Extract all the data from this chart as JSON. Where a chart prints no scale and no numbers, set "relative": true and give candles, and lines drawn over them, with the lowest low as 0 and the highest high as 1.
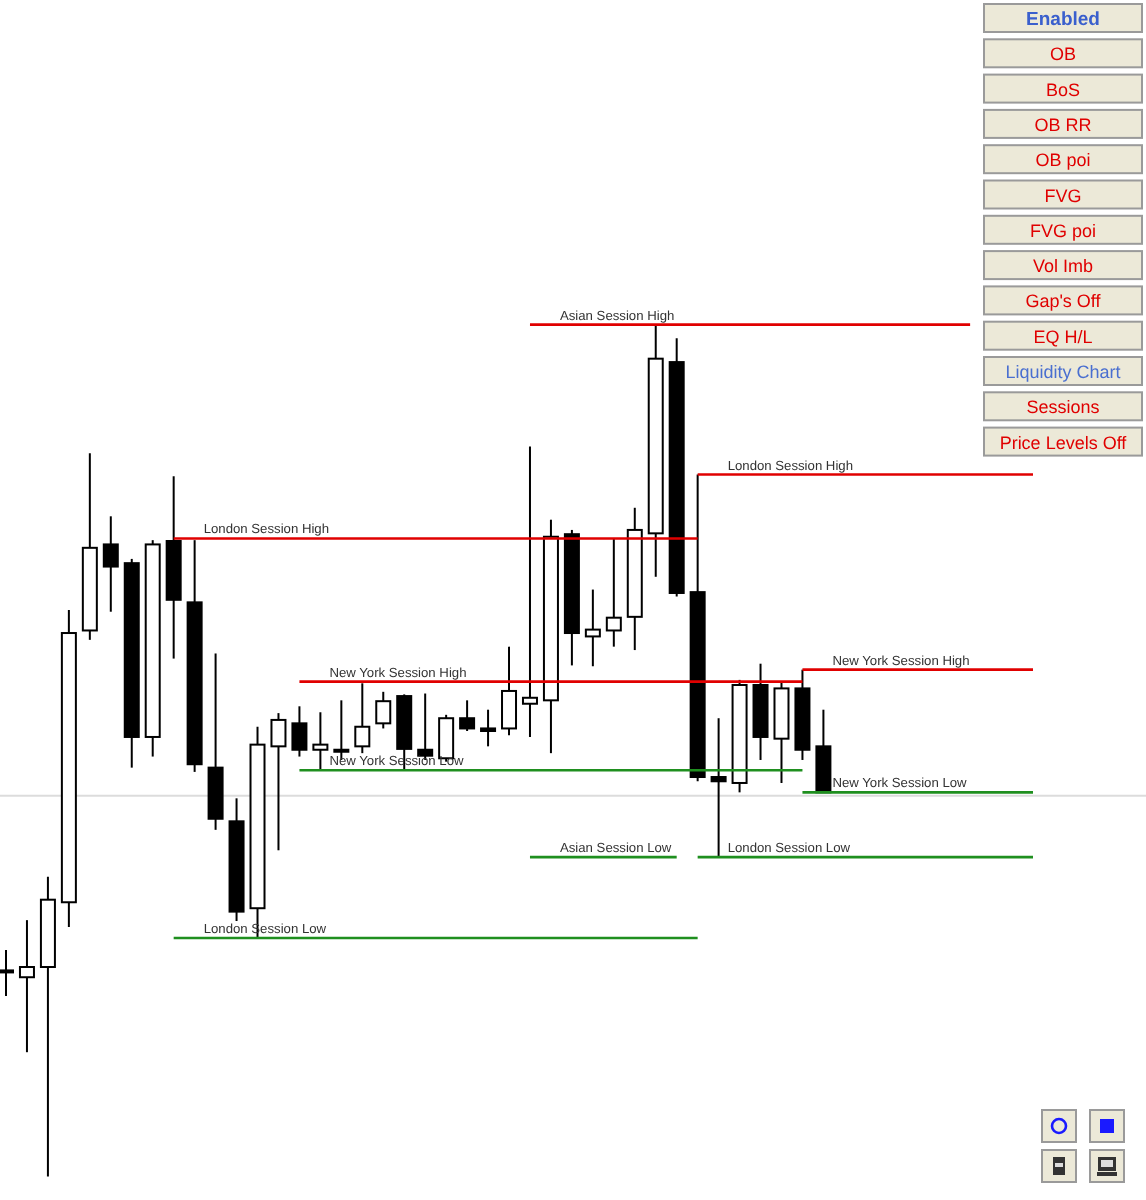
{
  "chart_data": {
    "type": "candlestick",
    "relative": true,
    "tick_labels": false,
    "categories": [
      null,
      null,
      null,
      null,
      null,
      null,
      null,
      null,
      null,
      null,
      null,
      null,
      null,
      null,
      null,
      null,
      null,
      null,
      null,
      null,
      null,
      null,
      null,
      null,
      null,
      null,
      null,
      null,
      null,
      null,
      null,
      null,
      null,
      null,
      null,
      null,
      null,
      null,
      null,
      null,
      null,
      null,
      null,
      null,
      null,
      null,
      null,
      null,
      null,
      null
    ],
    "ohlc": [
      [
        0.24,
        0.266,
        0.212,
        0.242
      ],
      [
        0.234,
        0.301,
        0.146,
        0.246
      ],
      [
        0.246,
        0.352,
        0,
        0.325
      ],
      [
        0.322,
        0.665,
        0.293,
        0.638
      ],
      [
        0.641,
        0.849,
        0.63,
        0.738
      ],
      [
        0.742,
        0.775,
        0.663,
        0.716
      ],
      [
        0.72,
        0.725,
        0.48,
        0.516
      ],
      [
        0.516,
        0.747,
        0.493,
        0.742
      ],
      [
        0.746,
        0.822,
        0.608,
        0.677
      ],
      [
        0.674,
        0.747,
        0.475,
        0.484
      ],
      [
        0.48,
        0.614,
        0.407,
        0.42
      ],
      [
        0.417,
        0.444,
        0.3,
        0.311
      ],
      [
        0.315,
        0.528,
        0.28,
        0.507
      ],
      [
        0.505,
        0.544,
        0.383,
        0.536
      ],
      [
        0.532,
        0.552,
        0.493,
        0.501
      ],
      [
        0.501,
        0.545,
        0.477,
        0.507
      ],
      [
        0.5,
        0.559,
        0.489,
        0.501
      ],
      [
        0.505,
        0.579,
        0.497,
        0.528
      ],
      [
        0.532,
        0.569,
        0.526,
        0.558
      ],
      [
        0.564,
        0.566,
        0.477,
        0.502
      ],
      [
        0.501,
        0.567,
        0.489,
        0.494
      ],
      [
        0.491,
        0.542,
        0.487,
        0.538
      ],
      [
        0.538,
        0.559,
        0.523,
        0.526
      ],
      [
        0.526,
        0.548,
        0.505,
        0.523
      ],
      [
        0.526,
        0.622,
        0.518,
        0.57
      ],
      [
        0.555,
        0.857,
        0.516,
        0.562
      ],
      [
        0.559,
        0.771,
        0.497,
        0.751
      ],
      [
        0.754,
        0.759,
        0.6,
        0.638
      ],
      [
        0.634,
        0.689,
        0.599,
        0.642
      ],
      [
        0.641,
        0.749,
        0.622,
        0.656
      ],
      [
        0.657,
        0.785,
        0.618,
        0.759
      ],
      [
        0.755,
        1,
        0.704,
        0.96
      ],
      [
        0.956,
        0.984,
        0.681,
        0.685
      ],
      [
        0.686,
        0.824,
        0.464,
        0.469
      ],
      [
        0.469,
        0.538,
        0.375,
        0.464
      ],
      [
        0.462,
        0.583,
        0.451,
        0.577
      ],
      [
        0.577,
        0.602,
        0.489,
        0.516
      ],
      [
        0.514,
        0.581,
        0.462,
        0.573
      ],
      [
        0.573,
        0.595,
        0.489,
        0.501
      ],
      [
        0.505,
        0.548,
        0.451,
        0.451
      ],
      null,
      null,
      null,
      null,
      null,
      null,
      null,
      null,
      null,
      null
    ],
    "series": [
      {
        "type": "line",
        "name": "Asian Session High",
        "color": "#e00000",
        "values": [
          null,
          null,
          null,
          null,
          null,
          null,
          null,
          null,
          null,
          null,
          null,
          null,
          null,
          null,
          null,
          null,
          null,
          null,
          null,
          null,
          null,
          null,
          null,
          null,
          null,
          1,
          1,
          1,
          1,
          1,
          1,
          1,
          1,
          1,
          1,
          1,
          1,
          1,
          1,
          1,
          1,
          1,
          1,
          1,
          1,
          1,
          1,
          null,
          null,
          null
        ]
      },
      {
        "type": "line",
        "name": "Asian Session Low",
        "color": "#1f8f1f",
        "values": [
          null,
          null,
          null,
          null,
          null,
          null,
          null,
          null,
          null,
          null,
          null,
          null,
          null,
          null,
          null,
          null,
          null,
          null,
          null,
          null,
          null,
          null,
          null,
          null,
          null,
          0.375,
          0.375,
          0.375,
          0.375,
          0.375,
          0.375,
          0.375,
          0.375,
          null,
          null,
          null,
          null,
          null,
          null,
          null,
          null,
          null,
          null,
          null,
          null,
          null,
          null,
          null,
          null,
          null
        ]
      },
      {
        "type": "line",
        "name": "London Session High",
        "color": "#e00000",
        "values": [
          null,
          null,
          null,
          null,
          null,
          null,
          null,
          null,
          0.749,
          0.749,
          0.749,
          0.749,
          0.749,
          0.749,
          0.749,
          0.749,
          0.749,
          0.749,
          0.749,
          0.749,
          0.749,
          0.749,
          0.749,
          0.749,
          0.749,
          0.749,
          0.749,
          0.749,
          0.749,
          0.749,
          0.749,
          0.749,
          0.749,
          0.749,
          null,
          null,
          null,
          null,
          null,
          null,
          null,
          null,
          null,
          null,
          null,
          null,
          null,
          null,
          null,
          null
        ]
      },
      {
        "type": "line",
        "name": "London Session Low",
        "color": "#1f8f1f",
        "values": [
          null,
          null,
          null,
          null,
          null,
          null,
          null,
          null,
          0.28,
          0.28,
          0.28,
          0.28,
          0.28,
          0.28,
          0.28,
          0.28,
          0.28,
          0.28,
          0.28,
          0.28,
          0.28,
          0.28,
          0.28,
          0.28,
          0.28,
          0.28,
          0.28,
          0.28,
          0.28,
          0.28,
          0.28,
          0.28,
          0.28,
          0.28,
          null,
          null,
          null,
          null,
          null,
          null,
          null,
          null,
          null,
          null,
          null,
          null,
          null,
          null,
          null,
          null
        ]
      },
      {
        "type": "line",
        "name": "London Session High",
        "color": "#e00000",
        "values": [
          null,
          null,
          null,
          null,
          null,
          null,
          null,
          null,
          null,
          null,
          null,
          null,
          null,
          null,
          null,
          null,
          null,
          null,
          null,
          null,
          null,
          null,
          null,
          null,
          null,
          null,
          null,
          null,
          null,
          null,
          null,
          null,
          null,
          0.824,
          0.824,
          0.824,
          0.824,
          0.824,
          0.824,
          0.824,
          0.824,
          0.824,
          0.824,
          0.824,
          0.824,
          0.824,
          0.824,
          0.824,
          0.824,
          0.824
        ]
      },
      {
        "type": "line",
        "name": "London Session Low",
        "color": "#1f8f1f",
        "values": [
          null,
          null,
          null,
          null,
          null,
          null,
          null,
          null,
          null,
          null,
          null,
          null,
          null,
          null,
          null,
          null,
          null,
          null,
          null,
          null,
          null,
          null,
          null,
          null,
          null,
          null,
          null,
          null,
          null,
          null,
          null,
          null,
          null,
          0.375,
          0.375,
          0.375,
          0.375,
          0.375,
          0.375,
          0.375,
          0.375,
          0.375,
          0.375,
          0.375,
          0.375,
          0.375,
          0.375,
          0.375,
          0.375,
          0.375
        ]
      },
      {
        "type": "line",
        "name": "New York Session High",
        "color": "#e00000",
        "values": [
          null,
          null,
          null,
          null,
          null,
          null,
          null,
          null,
          null,
          null,
          null,
          null,
          null,
          null,
          0.581,
          0.581,
          0.581,
          0.581,
          0.581,
          0.581,
          0.581,
          0.581,
          0.581,
          0.581,
          0.581,
          0.581,
          0.581,
          0.581,
          0.581,
          0.581,
          0.581,
          0.581,
          0.581,
          0.581,
          0.581,
          0.581,
          0.581,
          0.581,
          0.581,
          null,
          null,
          null,
          null,
          null,
          null,
          null,
          null,
          null,
          null,
          null
        ]
      },
      {
        "type": "line",
        "name": "New York Session Low",
        "color": "#1f8f1f",
        "values": [
          null,
          null,
          null,
          null,
          null,
          null,
          null,
          null,
          null,
          null,
          null,
          null,
          null,
          null,
          0.477,
          0.477,
          0.477,
          0.477,
          0.477,
          0.477,
          0.477,
          0.477,
          0.477,
          0.477,
          0.477,
          0.477,
          0.477,
          0.477,
          0.477,
          0.477,
          0.477,
          0.477,
          0.477,
          0.477,
          0.477,
          0.477,
          0.477,
          0.477,
          0.477,
          null,
          null,
          null,
          null,
          null,
          null,
          null,
          null,
          null,
          null,
          null
        ]
      },
      {
        "type": "line",
        "name": "New York Session High",
        "color": "#e00000",
        "values": [
          null,
          null,
          null,
          null,
          null,
          null,
          null,
          null,
          null,
          null,
          null,
          null,
          null,
          null,
          null,
          null,
          null,
          null,
          null,
          null,
          null,
          null,
          null,
          null,
          null,
          null,
          null,
          null,
          null,
          null,
          null,
          null,
          null,
          null,
          null,
          null,
          null,
          null,
          0.595,
          0.595,
          0.595,
          0.595,
          0.595,
          0.595,
          0.595,
          0.595,
          0.595,
          0.595,
          0.595,
          0.595
        ]
      },
      {
        "type": "line",
        "name": "New York Session Low",
        "color": "#1f8f1f",
        "values": [
          null,
          null,
          null,
          null,
          null,
          null,
          null,
          null,
          null,
          null,
          null,
          null,
          null,
          null,
          null,
          null,
          null,
          null,
          null,
          null,
          null,
          null,
          null,
          null,
          null,
          null,
          null,
          null,
          null,
          null,
          null,
          null,
          null,
          null,
          null,
          null,
          null,
          null,
          0.451,
          0.451,
          0.451,
          0.451,
          0.451,
          0.451,
          0.451,
          0.451,
          0.451,
          0.451,
          0.451,
          0.451
        ]
      }
    ],
    "ref_lines": [
      {
        "axis": "y",
        "value": 0.447,
        "color": "#dcdcdc"
      }
    ],
    "annotations": [
      "Enabled",
      "OB",
      "BoS",
      "OB RR",
      "OB poi",
      "FVG",
      "FVG poi",
      "Vol Imb",
      "Gap's Off",
      "EQ H/L",
      "Liquidity Chart",
      "Sessions",
      "Price Levels Off"
    ]
  }
}
